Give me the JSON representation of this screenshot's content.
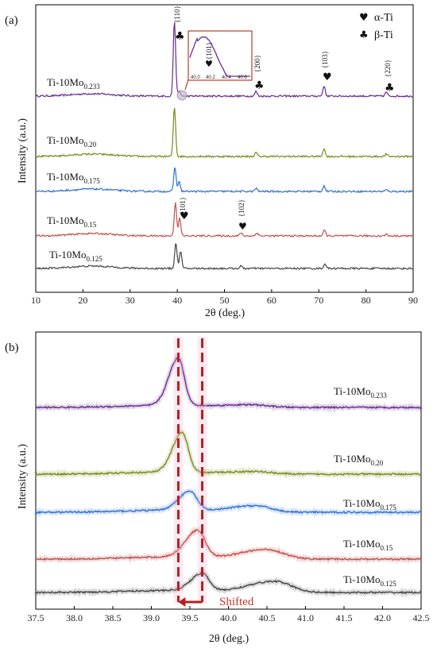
{
  "chart_data": [
    {
      "panel": "(a)",
      "type": "line",
      "xlabel": "2θ (deg.)",
      "ylabel": "Intensity (a.u.)",
      "xlim": [
        10,
        90
      ],
      "xticks": [
        10,
        20,
        30,
        40,
        50,
        60,
        70,
        80,
        90
      ],
      "legend": [
        {
          "symbol": "♥",
          "label": "α-Ti"
        },
        {
          "symbol": "♣",
          "label": "β-Ti"
        }
      ],
      "series": [
        {
          "name": "Ti-10Mo",
          "sub": "0.233",
          "color": "#6a2c91",
          "peaks": [
            [
              39.4,
              95
            ],
            [
              40.4,
              6
            ],
            [
              56.7,
              6
            ],
            [
              71.1,
              13
            ],
            [
              84.3,
              5
            ]
          ]
        },
        {
          "name": "Ti-10Mo",
          "sub": "0.20",
          "color": "#7a8a1a",
          "peaks": [
            [
              39.4,
              62
            ],
            [
              56.7,
              5
            ],
            [
              71.1,
              10
            ],
            [
              84.3,
              3
            ]
          ]
        },
        {
          "name": "Ti-10Mo",
          "sub": "0.175",
          "color": "#2e6fd8",
          "peaks": [
            [
              39.5,
              30
            ],
            [
              40.4,
              12
            ],
            [
              56.7,
              4
            ],
            [
              71.1,
              7
            ],
            [
              84.3,
              2
            ]
          ]
        },
        {
          "name": "Ti-10Mo",
          "sub": "0.15",
          "color": "#c0504d",
          "peaks": [
            [
              39.6,
              42
            ],
            [
              40.5,
              22
            ],
            [
              53.5,
              4
            ],
            [
              56.9,
              4
            ],
            [
              71.2,
              7
            ],
            [
              84.3,
              2
            ]
          ]
        },
        {
          "name": "Ti-10Mo",
          "sub": "0.125",
          "color": "#444444",
          "peaks": [
            [
              39.7,
              32
            ],
            [
              40.7,
              22
            ],
            [
              53.5,
              3
            ],
            [
              71.3,
              6
            ]
          ]
        }
      ],
      "annotations": [
        {
          "text": "{110}",
          "marker": "♣",
          "x": 39.4
        },
        {
          "text": "{200}",
          "marker": "♣",
          "x": 56.7
        },
        {
          "text": "{103}",
          "marker": "♥",
          "x": 71.1
        },
        {
          "text": "{220}",
          "marker": "♣",
          "x": 84.3
        },
        {
          "text": "{101}",
          "marker": "♥",
          "x": 40.5
        },
        {
          "text": "{102}",
          "marker": "♥",
          "x": 53.5
        }
      ],
      "inset": {
        "label": "{101}",
        "marker": "♥",
        "xticks": [
          "40.0",
          "40.2",
          "40.4",
          "40.6"
        ]
      }
    },
    {
      "panel": "(b)",
      "type": "line",
      "xlabel": "2θ (deg.)",
      "ylabel": "Intensity (a.u.)",
      "xlim": [
        37.5,
        42.5
      ],
      "xticks": [
        "37.5",
        "38.0",
        "38.5",
        "39.0",
        "39.5",
        "40.0",
        "40.5",
        "41.0",
        "41.5",
        "42.0",
        "42.5"
      ],
      "series": [
        {
          "name": "Ti-10Mo",
          "sub": "0.233",
          "color": "#6a2c91",
          "peaks": [
            [
              39.35,
              60,
              0.11
            ],
            [
              40.3,
              3,
              0.3
            ]
          ]
        },
        {
          "name": "Ti-10Mo",
          "sub": "0.20",
          "color": "#7a8a1a",
          "peaks": [
            [
              39.4,
              50,
              0.11
            ],
            [
              40.35,
              3,
              0.3
            ]
          ]
        },
        {
          "name": "Ti-10Mo",
          "sub": "0.175",
          "color": "#2e6fd8",
          "peaks": [
            [
              39.5,
              24,
              0.13
            ],
            [
              40.35,
              8,
              0.28
            ]
          ]
        },
        {
          "name": "Ti-10Mo",
          "sub": "0.15",
          "color": "#c0504d",
          "peaks": [
            [
              39.6,
              34,
              0.14
            ],
            [
              40.5,
              12,
              0.3
            ]
          ]
        },
        {
          "name": "Ti-10Mo",
          "sub": "0.125",
          "color": "#444444",
          "peaks": [
            [
              39.66,
              22,
              0.13
            ],
            [
              40.6,
              14,
              0.3
            ]
          ]
        }
      ],
      "shift": {
        "text": "Shifted",
        "from": 39.66,
        "to": 39.35
      }
    }
  ]
}
